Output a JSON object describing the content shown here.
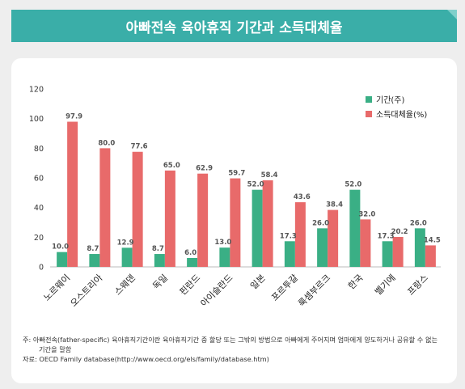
{
  "banner": {
    "title": "아빠전속 육아휴직 기간과 소득대체율"
  },
  "chart_data": {
    "type": "bar",
    "title": "",
    "xlabel": "",
    "ylabel": "",
    "ylim": [
      0,
      120
    ],
    "yticks": [
      0,
      20,
      40,
      60,
      80,
      100,
      120
    ],
    "categories": [
      "노르웨이",
      "오스트리아",
      "스웨덴",
      "독일",
      "핀란드",
      "아이슬란드",
      "일본",
      "포르투갈",
      "룩셈부르크",
      "한국",
      "벨기에",
      "프랑스"
    ],
    "series": [
      {
        "name": "기간(주)",
        "color": "#3aaf85",
        "values": [
          10.0,
          8.7,
          12.9,
          8.7,
          6.0,
          13.0,
          52.0,
          17.3,
          26.0,
          52.0,
          17.3,
          26.0
        ]
      },
      {
        "name": "소득대체율(%)",
        "color": "#e86a6a",
        "values": [
          97.9,
          80.0,
          77.6,
          65.0,
          62.9,
          59.7,
          58.4,
          43.6,
          38.4,
          32.0,
          20.2,
          14.5
        ]
      }
    ],
    "legend_position": "top-right",
    "grid": false
  },
  "notes": {
    "line1": "주: 아빠전속(father-specific) 육아휴직기간이란 육아휴직기간 중 할당 또는 그밖의 방법으로 아빠에게 주어지며 엄마에게 양도하거나 공유할 수 없는",
    "line2": "기간을 말함",
    "source": "자료: OECD Family database(http://www.oecd.org/els/family/database.htm)"
  }
}
